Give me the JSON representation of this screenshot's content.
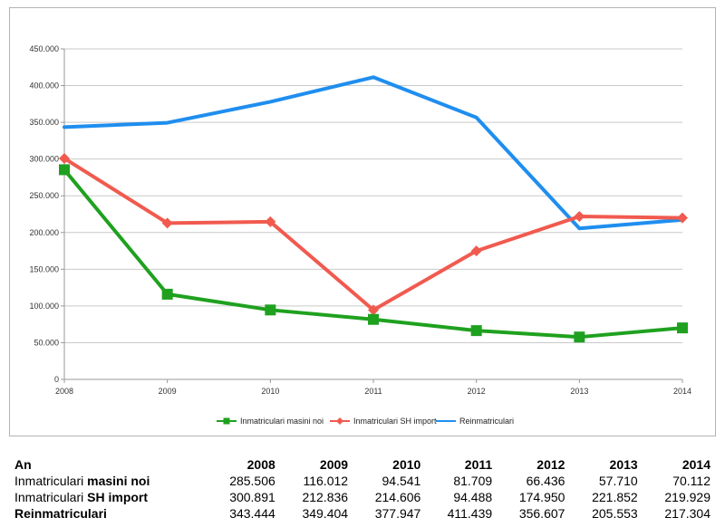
{
  "chart_data": {
    "type": "line",
    "x": [
      "2008",
      "2009",
      "2010",
      "2011",
      "2012",
      "2013",
      "2014"
    ],
    "ylim": [
      0,
      450000
    ],
    "y_ticks": [
      "0",
      "50.000",
      "100.000",
      "150.000",
      "200.000",
      "250.000",
      "300.000",
      "350.000",
      "400.000",
      "450.000"
    ],
    "y_tick_values": [
      0,
      50000,
      100000,
      150000,
      200000,
      250000,
      300000,
      350000,
      400000,
      450000
    ],
    "grid": "horizontal",
    "legend_position": "bottom",
    "series": [
      {
        "name": "Inmatriculari masini noi",
        "color": "#1fa11f",
        "marker": "square",
        "values": [
          285506,
          116012,
          94541,
          81709,
          66436,
          57710,
          70112
        ]
      },
      {
        "name": "Inmatriculari SH import",
        "color": "#f15a4f",
        "marker": "diamond",
        "values": [
          300891,
          212836,
          214606,
          94488,
          174950,
          221852,
          219929
        ]
      },
      {
        "name": "Reinmatriculari",
        "color": "#1f8eef",
        "marker": "none",
        "values": [
          343444,
          349404,
          377947,
          411439,
          356607,
          205553,
          217304
        ]
      }
    ]
  },
  "table": {
    "header_label": "An",
    "years": [
      "2008",
      "2009",
      "2010",
      "2011",
      "2012",
      "2013",
      "2014"
    ],
    "rows": [
      {
        "label_plain": "Inmatriculari ",
        "label_bold": "masini noi",
        "values": [
          "285.506",
          "116.012",
          "94.541",
          "81.709",
          "66.436",
          "57.710",
          "70.112"
        ]
      },
      {
        "label_plain": "Inmatriculari ",
        "label_bold": "SH import",
        "values": [
          "300.891",
          "212.836",
          "214.606",
          "94.488",
          "174.950",
          "221.852",
          "219.929"
        ]
      },
      {
        "label_plain": "",
        "label_bold": "Reinmatriculari",
        "values": [
          "343.444",
          "349.404",
          "377.947",
          "411.439",
          "356.607",
          "205.553",
          "217.304"
        ]
      }
    ]
  }
}
